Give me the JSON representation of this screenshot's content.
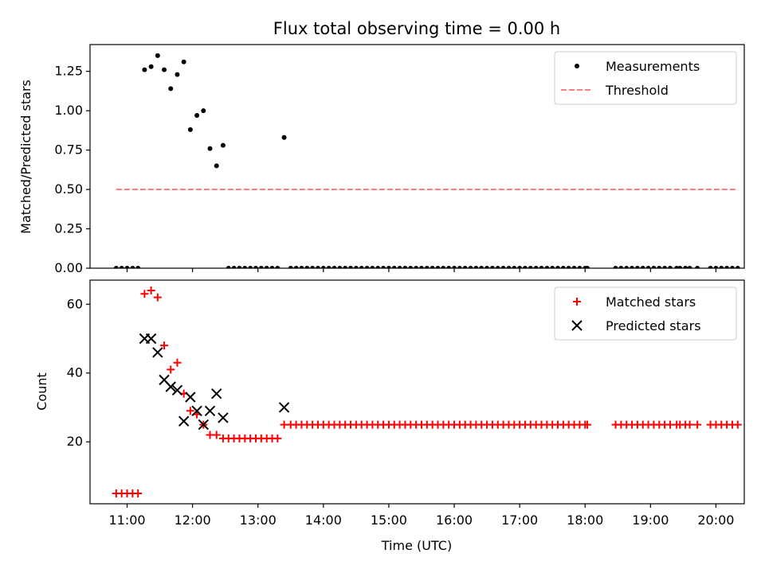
{
  "chart_data": [
    {
      "type": "scatter",
      "title": "Flux total observing time = 0.00 h",
      "xlabel": "",
      "ylabel": "Matched/Predicted stars",
      "ylim": [
        0,
        1.42
      ],
      "yticks": [
        0.0,
        0.25,
        0.5,
        0.75,
        1.0,
        1.25
      ],
      "ytick_labels": [
        "0.00",
        "0.25",
        "0.50",
        "0.75",
        "1.00",
        "1.25"
      ],
      "xlim": [
        "10:26",
        "20:26"
      ],
      "xticks": [
        "11:00",
        "12:00",
        "13:00",
        "14:00",
        "15:00",
        "16:00",
        "17:00",
        "18:00",
        "19:00",
        "20:00"
      ],
      "grid": false,
      "legend_position": "top-right",
      "series": [
        {
          "name": "Measurements",
          "marker": "dot",
          "color": "#000000",
          "points": [
            [
              "10:50",
              0
            ],
            [
              "10:55",
              0
            ],
            [
              "11:00",
              0
            ],
            [
              "11:05",
              0
            ],
            [
              "11:10",
              0
            ],
            [
              "11:16",
              1.26
            ],
            [
              "11:22",
              1.28
            ],
            [
              "11:28",
              1.35
            ],
            [
              "11:34",
              1.26
            ],
            [
              "11:40",
              1.14
            ],
            [
              "11:46",
              1.23
            ],
            [
              "11:52",
              1.31
            ],
            [
              "11:58",
              0.88
            ],
            [
              "12:04",
              0.97
            ],
            [
              "12:10",
              1.0
            ],
            [
              "12:16",
              0.76
            ],
            [
              "12:22",
              0.65
            ],
            [
              "12:28",
              0.78
            ],
            [
              "12:33",
              0
            ],
            [
              "12:38",
              0
            ],
            [
              "12:43",
              0
            ],
            [
              "12:48",
              0
            ],
            [
              "12:53",
              0
            ],
            [
              "12:58",
              0
            ],
            [
              "13:03",
              0
            ],
            [
              "13:08",
              0
            ],
            [
              "13:13",
              0
            ],
            [
              "13:18",
              0
            ],
            [
              "13:24",
              0.83
            ],
            [
              "13:30",
              0
            ],
            [
              "13:35",
              0
            ],
            [
              "13:40",
              0
            ],
            [
              "13:45",
              0
            ],
            [
              "13:50",
              0
            ],
            [
              "13:55",
              0
            ],
            [
              "14:00",
              0
            ],
            [
              "14:05",
              0
            ],
            [
              "14:10",
              0
            ],
            [
              "14:15",
              0
            ],
            [
              "14:20",
              0
            ],
            [
              "14:25",
              0
            ],
            [
              "14:30",
              0
            ],
            [
              "14:35",
              0
            ],
            [
              "14:40",
              0
            ],
            [
              "14:45",
              0
            ],
            [
              "14:50",
              0
            ],
            [
              "14:55",
              0
            ],
            [
              "15:00",
              0
            ],
            [
              "15:05",
              0
            ],
            [
              "15:10",
              0
            ],
            [
              "15:15",
              0
            ],
            [
              "15:20",
              0
            ],
            [
              "15:25",
              0
            ],
            [
              "15:30",
              0
            ],
            [
              "15:35",
              0
            ],
            [
              "15:40",
              0
            ],
            [
              "15:45",
              0
            ],
            [
              "15:50",
              0
            ],
            [
              "15:55",
              0
            ],
            [
              "16:00",
              0
            ],
            [
              "16:05",
              0
            ],
            [
              "16:10",
              0
            ],
            [
              "16:15",
              0
            ],
            [
              "16:20",
              0
            ],
            [
              "16:25",
              0
            ],
            [
              "16:30",
              0
            ],
            [
              "16:35",
              0
            ],
            [
              "16:40",
              0
            ],
            [
              "16:45",
              0
            ],
            [
              "16:50",
              0
            ],
            [
              "16:55",
              0
            ],
            [
              "17:00",
              0
            ],
            [
              "17:05",
              0
            ],
            [
              "17:10",
              0
            ],
            [
              "17:15",
              0
            ],
            [
              "17:20",
              0
            ],
            [
              "17:25",
              0
            ],
            [
              "17:30",
              0
            ],
            [
              "17:35",
              0
            ],
            [
              "17:40",
              0
            ],
            [
              "17:45",
              0
            ],
            [
              "17:50",
              0
            ],
            [
              "17:55",
              0
            ],
            [
              "18:00",
              0
            ],
            [
              "18:02",
              0
            ],
            [
              "18:28",
              0
            ],
            [
              "18:33",
              0
            ],
            [
              "18:38",
              0
            ],
            [
              "18:43",
              0
            ],
            [
              "18:48",
              0
            ],
            [
              "18:53",
              0
            ],
            [
              "18:58",
              0
            ],
            [
              "19:03",
              0
            ],
            [
              "19:08",
              0
            ],
            [
              "19:13",
              0
            ],
            [
              "19:18",
              0
            ],
            [
              "19:24",
              0
            ],
            [
              "19:27",
              0
            ],
            [
              "19:32",
              0
            ],
            [
              "19:36",
              0
            ],
            [
              "19:43",
              0
            ],
            [
              "19:55",
              0
            ],
            [
              "20:00",
              0
            ],
            [
              "20:05",
              0
            ],
            [
              "20:10",
              0
            ],
            [
              "20:15",
              0
            ],
            [
              "20:20",
              0
            ]
          ]
        },
        {
          "name": "Threshold",
          "marker": "dashed-line",
          "color": "#ff7f7f",
          "points": [
            [
              "10:50",
              0.5
            ],
            [
              "20:20",
              0.5
            ]
          ]
        }
      ]
    },
    {
      "type": "scatter",
      "title": "",
      "xlabel": "Time (UTC)",
      "ylabel": "Count",
      "ylim": [
        2,
        67
      ],
      "yticks": [
        20,
        40,
        60
      ],
      "ytick_labels": [
        "20",
        "40",
        "60"
      ],
      "xlim": [
        "10:26",
        "20:26"
      ],
      "xticks": [
        "11:00",
        "12:00",
        "13:00",
        "14:00",
        "15:00",
        "16:00",
        "17:00",
        "18:00",
        "19:00",
        "20:00"
      ],
      "xtick_labels": [
        "11:00",
        "12:00",
        "13:00",
        "14:00",
        "15:00",
        "16:00",
        "17:00",
        "18:00",
        "19:00",
        "20:00"
      ],
      "grid": false,
      "legend_position": "top-right",
      "series": [
        {
          "name": "Matched stars",
          "marker": "plus",
          "color": "#ff0000",
          "points": [
            [
              "10:50",
              5
            ],
            [
              "10:55",
              5
            ],
            [
              "11:00",
              5
            ],
            [
              "11:05",
              5
            ],
            [
              "11:10",
              5
            ],
            [
              "11:16",
              63
            ],
            [
              "11:22",
              64
            ],
            [
              "11:28",
              62
            ],
            [
              "11:34",
              48
            ],
            [
              "11:40",
              41
            ],
            [
              "11:46",
              43
            ],
            [
              "11:52",
              34
            ],
            [
              "11:58",
              29
            ],
            [
              "12:04",
              28
            ],
            [
              "12:10",
              25
            ],
            [
              "12:16",
              22
            ],
            [
              "12:22",
              22
            ],
            [
              "12:28",
              21
            ],
            [
              "12:33",
              21
            ],
            [
              "12:38",
              21
            ],
            [
              "12:43",
              21
            ],
            [
              "12:48",
              21
            ],
            [
              "12:53",
              21
            ],
            [
              "12:58",
              21
            ],
            [
              "13:03",
              21
            ],
            [
              "13:08",
              21
            ],
            [
              "13:13",
              21
            ],
            [
              "13:18",
              21
            ],
            [
              "13:24",
              25
            ],
            [
              "13:30",
              25
            ],
            [
              "13:35",
              25
            ],
            [
              "13:40",
              25
            ],
            [
              "13:45",
              25
            ],
            [
              "13:50",
              25
            ],
            [
              "13:55",
              25
            ],
            [
              "14:00",
              25
            ],
            [
              "14:05",
              25
            ],
            [
              "14:10",
              25
            ],
            [
              "14:15",
              25
            ],
            [
              "14:20",
              25
            ],
            [
              "14:25",
              25
            ],
            [
              "14:30",
              25
            ],
            [
              "14:35",
              25
            ],
            [
              "14:40",
              25
            ],
            [
              "14:45",
              25
            ],
            [
              "14:50",
              25
            ],
            [
              "14:55",
              25
            ],
            [
              "15:00",
              25
            ],
            [
              "15:05",
              25
            ],
            [
              "15:10",
              25
            ],
            [
              "15:15",
              25
            ],
            [
              "15:20",
              25
            ],
            [
              "15:25",
              25
            ],
            [
              "15:30",
              25
            ],
            [
              "15:35",
              25
            ],
            [
              "15:40",
              25
            ],
            [
              "15:45",
              25
            ],
            [
              "15:50",
              25
            ],
            [
              "15:55",
              25
            ],
            [
              "16:00",
              25
            ],
            [
              "16:05",
              25
            ],
            [
              "16:10",
              25
            ],
            [
              "16:15",
              25
            ],
            [
              "16:20",
              25
            ],
            [
              "16:25",
              25
            ],
            [
              "16:30",
              25
            ],
            [
              "16:35",
              25
            ],
            [
              "16:40",
              25
            ],
            [
              "16:45",
              25
            ],
            [
              "16:50",
              25
            ],
            [
              "16:55",
              25
            ],
            [
              "17:00",
              25
            ],
            [
              "17:05",
              25
            ],
            [
              "17:10",
              25
            ],
            [
              "17:15",
              25
            ],
            [
              "17:20",
              25
            ],
            [
              "17:25",
              25
            ],
            [
              "17:30",
              25
            ],
            [
              "17:35",
              25
            ],
            [
              "17:40",
              25
            ],
            [
              "17:45",
              25
            ],
            [
              "17:50",
              25
            ],
            [
              "17:55",
              25
            ],
            [
              "18:00",
              25
            ],
            [
              "18:02",
              25
            ],
            [
              "18:28",
              25
            ],
            [
              "18:33",
              25
            ],
            [
              "18:38",
              25
            ],
            [
              "18:43",
              25
            ],
            [
              "18:48",
              25
            ],
            [
              "18:53",
              25
            ],
            [
              "18:58",
              25
            ],
            [
              "19:03",
              25
            ],
            [
              "19:08",
              25
            ],
            [
              "19:13",
              25
            ],
            [
              "19:18",
              25
            ],
            [
              "19:24",
              25
            ],
            [
              "19:27",
              25
            ],
            [
              "19:32",
              25
            ],
            [
              "19:36",
              25
            ],
            [
              "19:43",
              25
            ],
            [
              "19:55",
              25
            ],
            [
              "20:00",
              25
            ],
            [
              "20:05",
              25
            ],
            [
              "20:10",
              25
            ],
            [
              "20:15",
              25
            ],
            [
              "20:20",
              25
            ]
          ]
        },
        {
          "name": "Predicted stars",
          "marker": "x",
          "color": "#000000",
          "points": [
            [
              "11:16",
              50
            ],
            [
              "11:22",
              50
            ],
            [
              "11:28",
              46
            ],
            [
              "11:34",
              38
            ],
            [
              "11:40",
              36
            ],
            [
              "11:46",
              35
            ],
            [
              "11:52",
              26
            ],
            [
              "11:58",
              33
            ],
            [
              "12:04",
              29
            ],
            [
              "12:10",
              25
            ],
            [
              "12:16",
              29
            ],
            [
              "12:22",
              34
            ],
            [
              "12:28",
              27
            ],
            [
              "13:24",
              30
            ]
          ]
        }
      ]
    }
  ]
}
